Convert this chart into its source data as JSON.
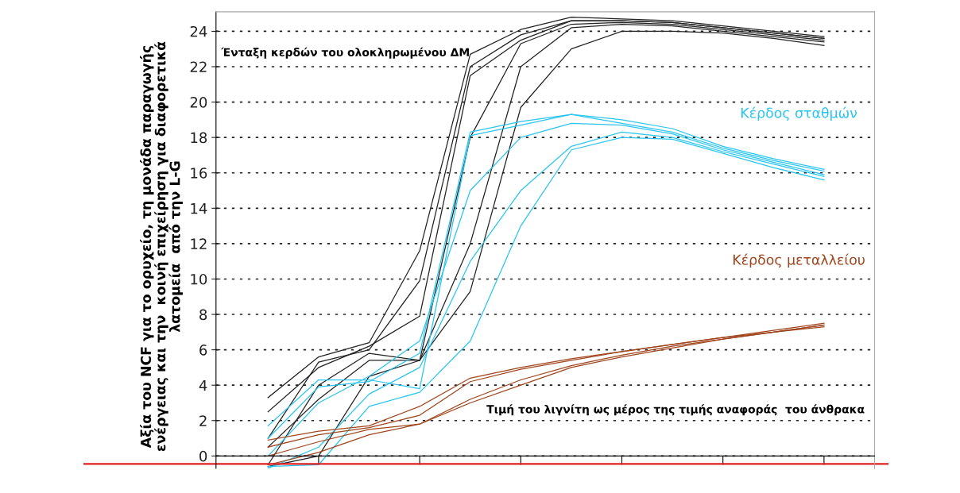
{
  "chart_data": {
    "type": "line",
    "ylabel": "Αξία του NCF για το ορυχείο, τη μονάδα παραγωγής\nενέργειας και την  κοινή επιχείρηση για διαφορετικά\nλατομεία  από την L-G",
    "xlabel": "Τιμή του λιγνίτη ως μέρος της τιμής αναφοράς  του άνθρακα",
    "annotations": [
      "Ένταξη κερδών του ολοκληρωμένου ΔΜ"
    ],
    "categories": [
      null,
      null,
      null,
      null,
      null,
      null,
      null,
      null,
      null,
      null,
      null,
      null
    ],
    "ylim": [
      -0.7,
      25.1
    ],
    "yticks": [
      0,
      2,
      4,
      6,
      8,
      10,
      12,
      14,
      16,
      18,
      20,
      22,
      24
    ],
    "grid": "y",
    "legend": false,
    "marker": "none",
    "line_style": "solid",
    "ref_lines": [
      {
        "axis": "y",
        "value": -0.45,
        "color": "#e02020",
        "line_style": "solid"
      }
    ],
    "series": [
      {
        "color": "#222222",
        "values": [
          3.3,
          5.6,
          6.4,
          11.6,
          22.7,
          24.1,
          24.8,
          24.7,
          24.6,
          24.3,
          24.0,
          23.7
        ]
      },
      {
        "color": "#222222",
        "values": [
          1.0,
          5.3,
          6.0,
          9.9,
          22.0,
          23.8,
          24.6,
          24.6,
          24.5,
          24.2,
          23.9,
          23.6
        ]
      },
      {
        "color": "#222222",
        "values": [
          -0.5,
          4.0,
          5.8,
          5.4,
          18.0,
          23.3,
          24.4,
          24.5,
          24.4,
          24.1,
          23.8,
          23.5
        ]
      },
      {
        "color": "#222222",
        "values": [
          0.5,
          3.2,
          5.4,
          5.4,
          12.0,
          22.0,
          24.2,
          24.4,
          24.3,
          24.0,
          23.7,
          23.4
        ]
      },
      {
        "color": "#222222",
        "values": [
          -0.6,
          0.0,
          4.5,
          5.4,
          9.3,
          19.7,
          23.0,
          24.0,
          24.0,
          23.9,
          23.6,
          23.2
        ]
      },
      {
        "color": "#222222",
        "values": [
          2.5,
          5.0,
          6.2,
          7.9,
          21.5,
          23.5,
          24.6,
          24.6,
          24.5,
          24.2,
          23.9,
          23.6
        ]
      },
      {
        "color": "#29c5f0",
        "values": [
          1.7,
          4.3,
          4.3,
          3.8,
          18.1,
          18.7,
          19.3,
          19.0,
          18.5,
          17.5,
          16.8,
          16.2
        ]
      },
      {
        "color": "#29c5f0",
        "values": [
          1.0,
          3.9,
          4.2,
          5.8,
          18.3,
          18.9,
          19.3,
          18.8,
          18.3,
          17.4,
          16.7,
          16.1
        ]
      },
      {
        "color": "#29c5f0",
        "values": [
          0.0,
          3.0,
          4.5,
          6.5,
          15.0,
          18.0,
          18.8,
          18.7,
          18.2,
          17.3,
          16.6,
          15.9
        ]
      },
      {
        "color": "#29c5f0",
        "values": [
          -0.7,
          0.5,
          3.5,
          5.0,
          11.0,
          15.0,
          17.5,
          18.3,
          18.0,
          17.2,
          16.5,
          15.8
        ]
      },
      {
        "name": "Κέρδος σταθμών",
        "color": "#29c5f0",
        "values": [
          -0.6,
          -0.5,
          2.8,
          3.6,
          6.5,
          13.0,
          17.3,
          18.0,
          17.9,
          17.1,
          16.3,
          15.6
        ]
      },
      {
        "color": "#a0441c",
        "values": [
          0.9,
          1.4,
          1.7,
          2.8,
          4.4,
          5.0,
          5.5,
          5.9,
          6.3,
          6.7,
          7.1,
          7.5
        ]
      },
      {
        "color": "#a0441c",
        "values": [
          0.5,
          1.2,
          1.6,
          2.3,
          4.2,
          4.9,
          5.4,
          5.9,
          6.3,
          6.7,
          7.0,
          7.4
        ]
      },
      {
        "color": "#a0441c",
        "values": [
          0.0,
          0.8,
          1.5,
          1.8,
          3.2,
          4.3,
          5.1,
          5.7,
          6.2,
          6.6,
          7.0,
          7.4
        ]
      },
      {
        "name": "Κέρδος μεταλλείου",
        "color": "#a0441c",
        "values": [
          -0.5,
          0.2,
          1.2,
          1.8,
          3.0,
          4.0,
          5.0,
          5.6,
          6.1,
          6.6,
          7.0,
          7.3
        ]
      }
    ]
  }
}
